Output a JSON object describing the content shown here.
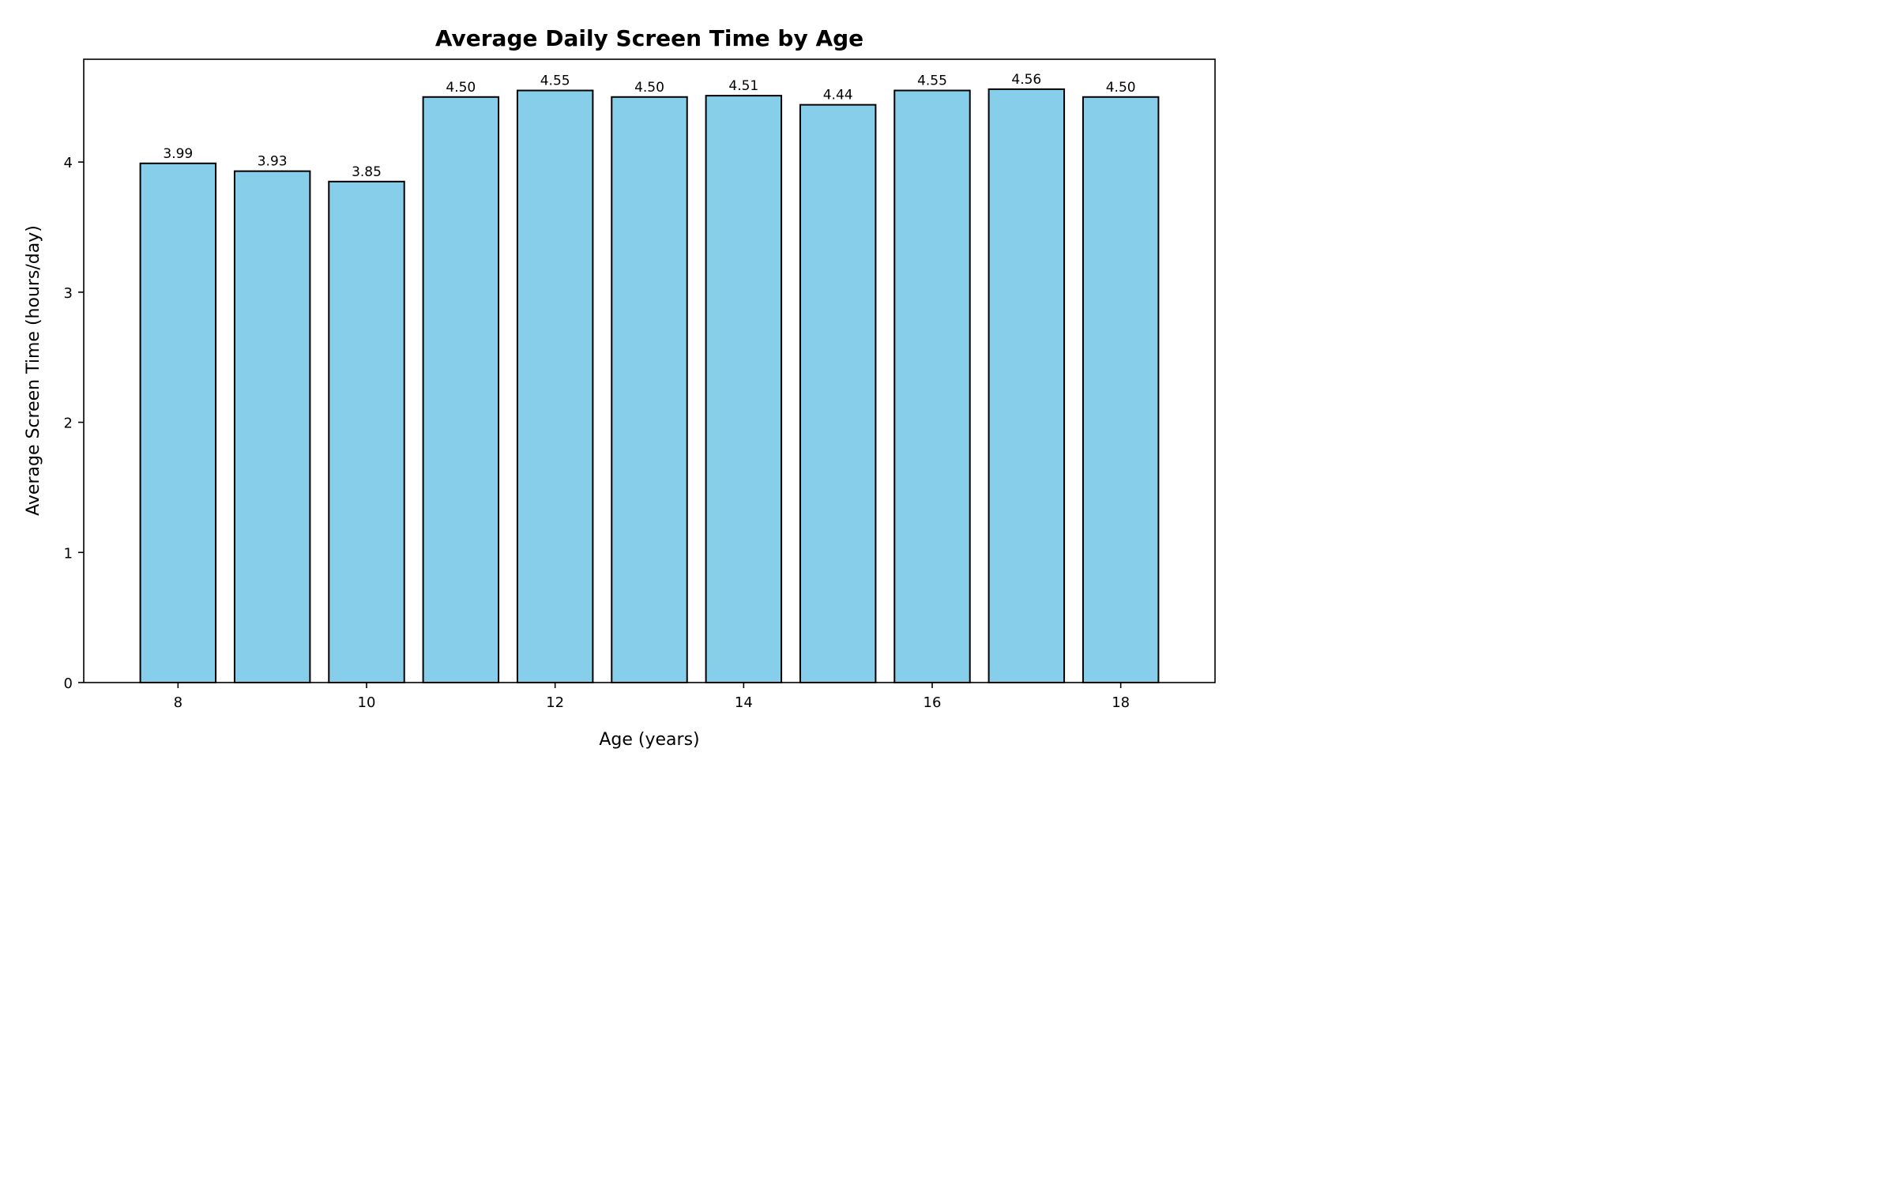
{
  "chart_data": {
    "type": "bar",
    "title": "Average Daily Screen Time by Age",
    "xlabel": "Age (years)",
    "ylabel": "Average Screen Time (hours/day)",
    "categories": [
      8,
      9,
      10,
      11,
      12,
      13,
      14,
      15,
      16,
      17,
      18
    ],
    "values": [
      3.99,
      3.93,
      3.85,
      4.5,
      4.55,
      4.5,
      4.51,
      4.44,
      4.55,
      4.56,
      4.5
    ],
    "value_labels": [
      "3.99",
      "3.93",
      "3.85",
      "4.50",
      "4.55",
      "4.50",
      "4.51",
      "4.44",
      "4.55",
      "4.56",
      "4.50"
    ],
    "xticks": [
      8,
      10,
      12,
      14,
      16,
      18
    ],
    "yticks": [
      0,
      1,
      2,
      3,
      4
    ],
    "xlim": [
      7,
      19
    ],
    "ylim": [
      0,
      4.79
    ],
    "bar_width": 0.8,
    "bar_color": "#87CEEB",
    "edge_color": "#000000",
    "grid": false,
    "legend": "none"
  }
}
